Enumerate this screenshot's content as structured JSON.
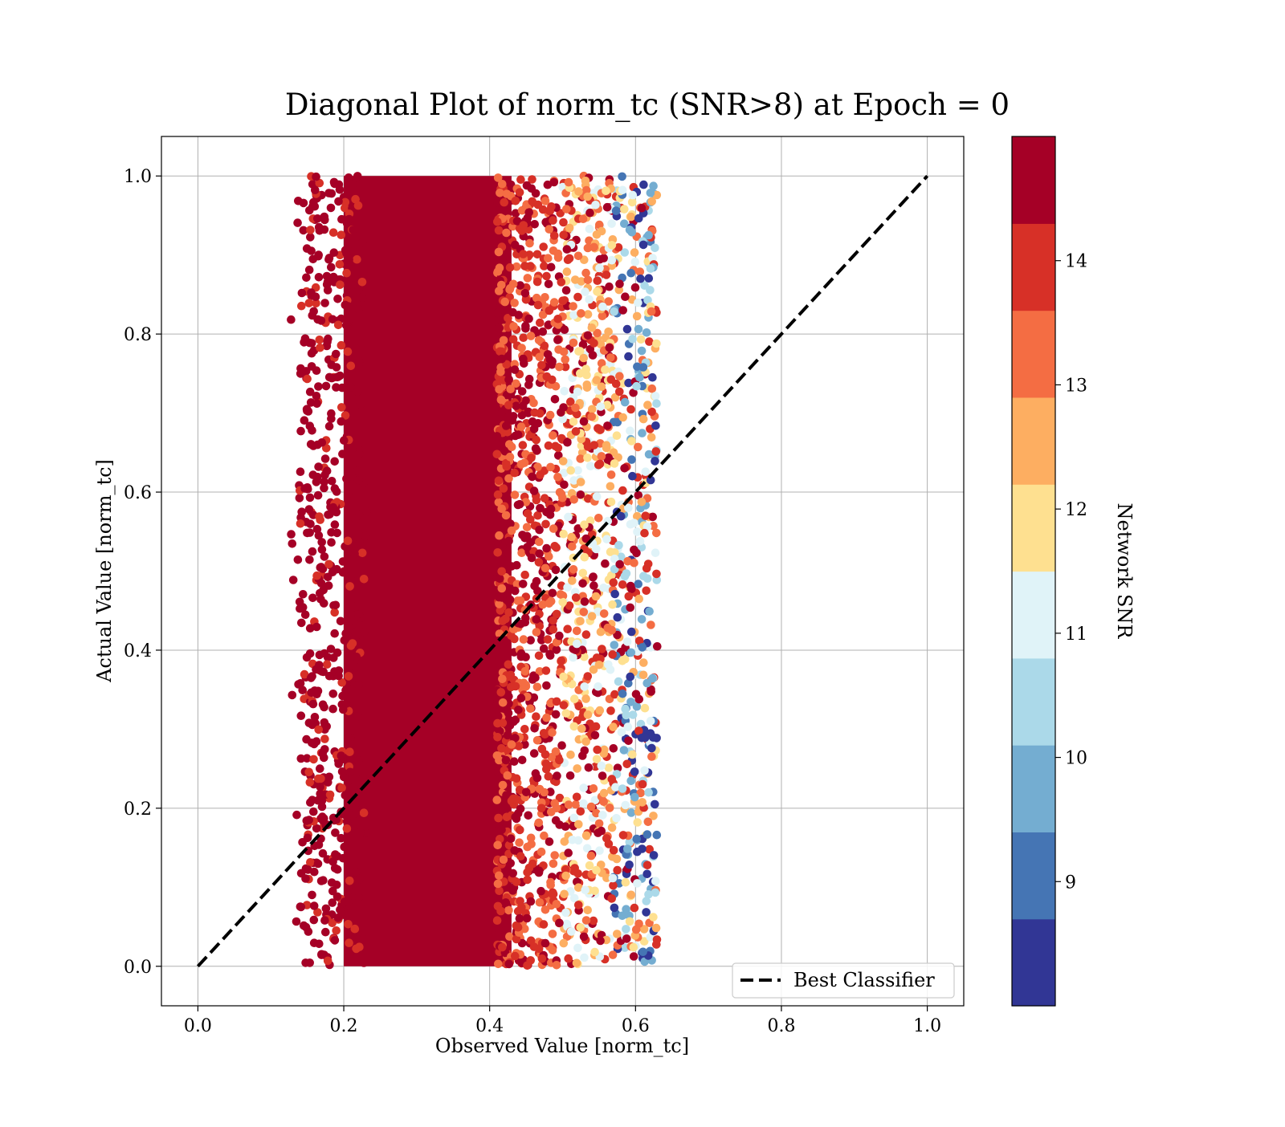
{
  "chart_data": {
    "type": "scatter",
    "title": "Diagonal Plot of norm_tc (SNR>8) at Epoch = 0",
    "xlabel": "Observed Value [norm_tc]",
    "ylabel": "Actual Value [norm_tc]",
    "xlim": [
      -0.05,
      1.05
    ],
    "ylim": [
      -0.05,
      1.05
    ],
    "xticks": [
      "0.0",
      "0.2",
      "0.4",
      "0.6",
      "0.8",
      "1.0"
    ],
    "yticks": [
      "0.0",
      "0.2",
      "0.4",
      "0.6",
      "0.8",
      "1.0"
    ],
    "grid": true,
    "legend": {
      "position": "lower right",
      "entries": [
        {
          "label": "Best Classifier",
          "style": "dashed",
          "color": "#000000"
        }
      ]
    },
    "reference_line": {
      "name": "Best Classifier",
      "x": [
        0.0,
        1.0
      ],
      "y": [
        0.0,
        1.0
      ]
    },
    "point_cloud": {
      "x_min": 0.12,
      "x_max": 0.63,
      "y_min": 0.0,
      "y_max": 1.0,
      "dense_core_x": [
        0.2,
        0.43
      ],
      "note_color_by": "Network SNR"
    },
    "colorbar": {
      "label": "Network SNR",
      "range": [
        8.0,
        15.0
      ],
      "ticks": [
        "9",
        "10",
        "11",
        "12",
        "13",
        "14"
      ],
      "tick_values": [
        9,
        10,
        11,
        12,
        13,
        14
      ],
      "bands": [
        {
          "from": 8.0,
          "to": 8.7,
          "color": "#313695"
        },
        {
          "from": 8.7,
          "to": 9.4,
          "color": "#4575b4"
        },
        {
          "from": 9.4,
          "to": 10.1,
          "color": "#74add1"
        },
        {
          "from": 10.1,
          "to": 10.8,
          "color": "#abd9e9"
        },
        {
          "from": 10.8,
          "to": 11.5,
          "color": "#e0f3f8"
        },
        {
          "from": 11.5,
          "to": 12.2,
          "color": "#fee090"
        },
        {
          "from": 12.2,
          "to": 12.9,
          "color": "#fdae61"
        },
        {
          "from": 12.9,
          "to": 13.6,
          "color": "#f46d43"
        },
        {
          "from": 13.6,
          "to": 14.3,
          "color": "#d73027"
        },
        {
          "from": 14.3,
          "to": 15.0,
          "color": "#a50026"
        }
      ]
    }
  }
}
